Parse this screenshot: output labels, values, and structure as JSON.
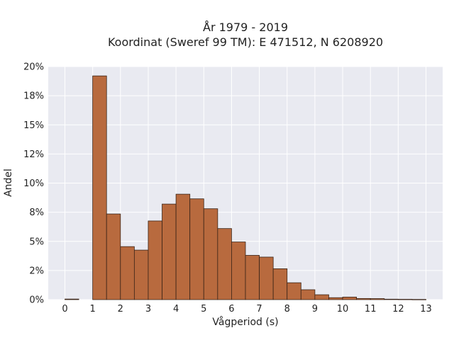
{
  "chart_data": {
    "type": "bar",
    "title": "År 1979 - 2019",
    "subtitle": "Koordinat (Sweref 99 TM): E 471512, N 6208920",
    "xlabel": "Vågperiod (s)",
    "ylabel": "Andel",
    "x_ticks": [
      "0",
      "1",
      "2",
      "3",
      "4",
      "5",
      "6",
      "7",
      "8",
      "9",
      "10",
      "11",
      "12",
      "13"
    ],
    "y_ticks": [
      "0%",
      "2%",
      "5%",
      "8%",
      "10%",
      "12%",
      "15%",
      "18%",
      "20%"
    ],
    "xlim": [
      -0.6,
      13.6
    ],
    "ylim": [
      0,
      20
    ],
    "bin_width": 0.5,
    "bins": [
      {
        "x0": 0.0,
        "value": 0.05
      },
      {
        "x0": 1.0,
        "value": 19.2
      },
      {
        "x0": 1.5,
        "value": 7.35
      },
      {
        "x0": 2.0,
        "value": 4.55
      },
      {
        "x0": 2.5,
        "value": 4.25
      },
      {
        "x0": 3.0,
        "value": 6.75
      },
      {
        "x0": 3.5,
        "value": 8.2
      },
      {
        "x0": 4.0,
        "value": 9.05
      },
      {
        "x0": 4.5,
        "value": 8.65
      },
      {
        "x0": 5.0,
        "value": 7.8
      },
      {
        "x0": 5.5,
        "value": 6.1
      },
      {
        "x0": 6.0,
        "value": 4.95
      },
      {
        "x0": 6.5,
        "value": 3.8
      },
      {
        "x0": 7.0,
        "value": 3.65
      },
      {
        "x0": 7.5,
        "value": 2.65
      },
      {
        "x0": 8.0,
        "value": 1.45
      },
      {
        "x0": 8.5,
        "value": 0.85
      },
      {
        "x0": 9.0,
        "value": 0.42
      },
      {
        "x0": 9.5,
        "value": 0.17
      },
      {
        "x0": 10.0,
        "value": 0.22
      },
      {
        "x0": 10.5,
        "value": 0.1
      },
      {
        "x0": 11.0,
        "value": 0.09
      },
      {
        "x0": 11.5,
        "value": 0.04
      },
      {
        "x0": 12.0,
        "value": 0.03
      },
      {
        "x0": 12.5,
        "value": 0.02
      }
    ],
    "grid": true,
    "colors": {
      "bar_fill": "#b86a3e",
      "bar_edge": "#3a2418",
      "plot_background": "#e9eaf1",
      "grid": "#ffffff"
    }
  }
}
